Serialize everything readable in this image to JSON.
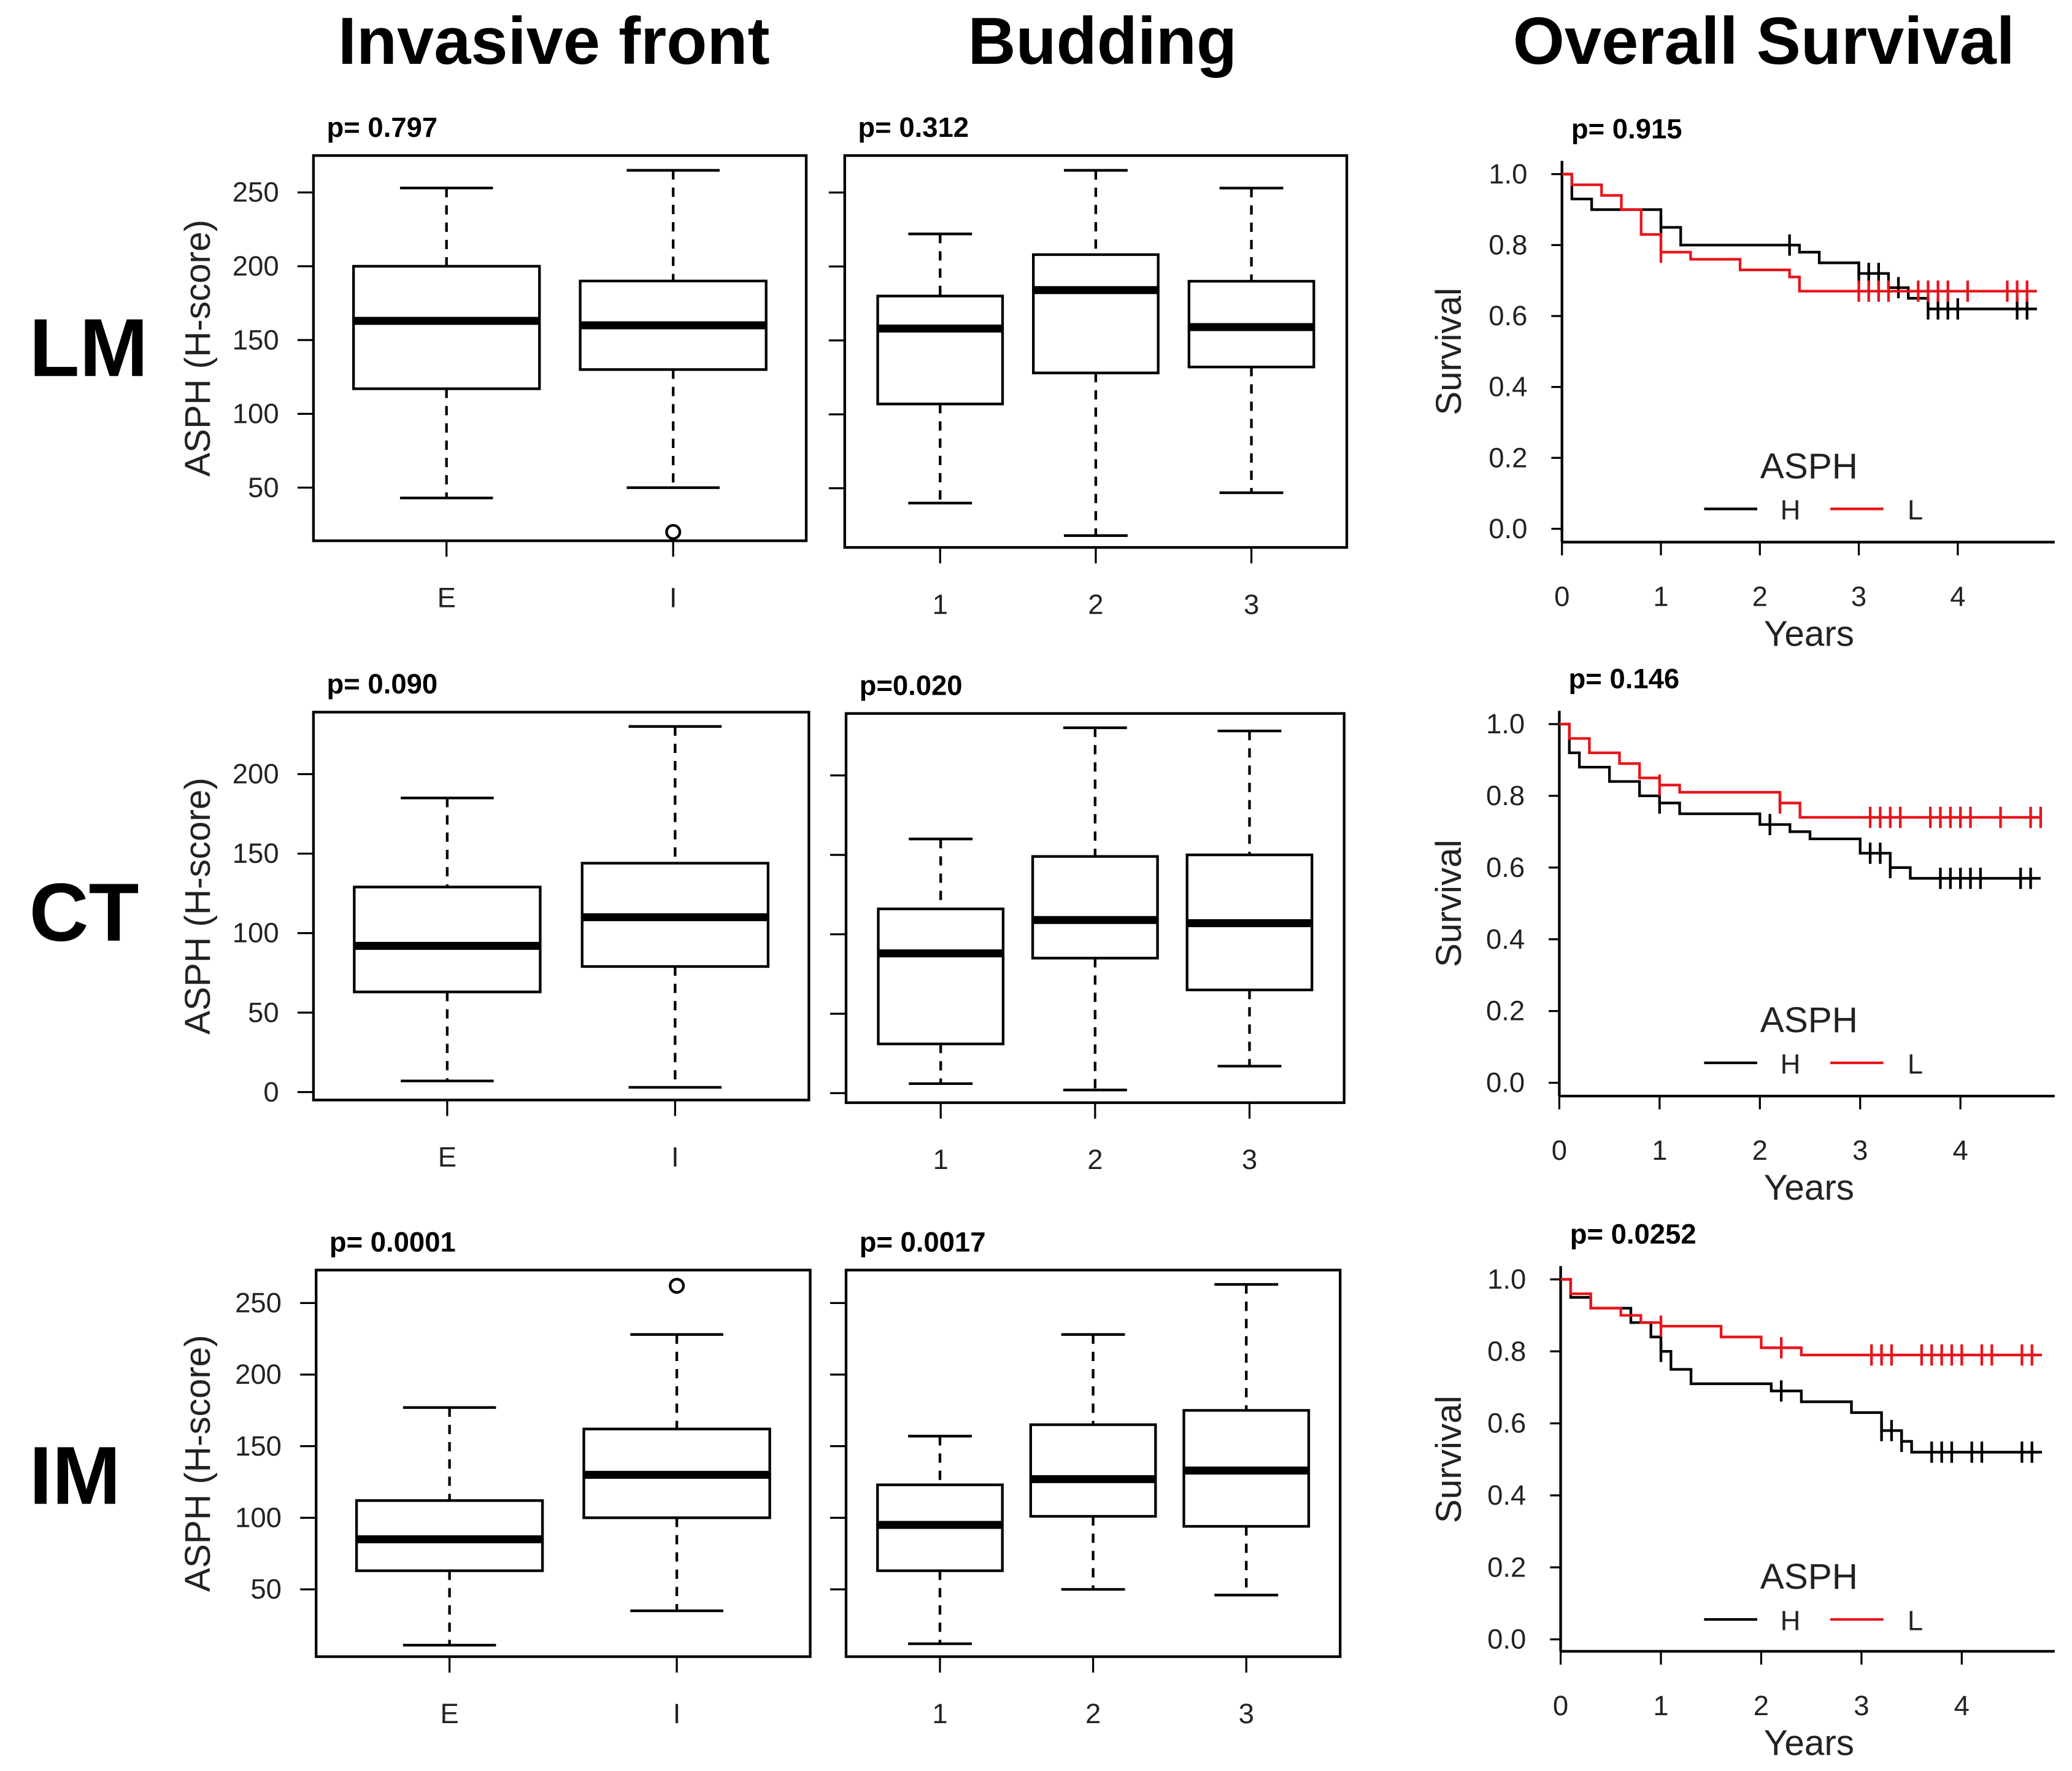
{
  "columns": [
    "Invasive front",
    "Budding",
    "Overall Survival"
  ],
  "rows": [
    "LM",
    "CT",
    "IM"
  ],
  "colors": {
    "H": "#000000",
    "L": "#e8141b"
  },
  "chart_data": [
    {
      "type": "box",
      "row": "LM",
      "panel": "Invasive front",
      "p": "p= 0.797",
      "ylabel": "ASPH (H-score)",
      "ylim": [
        14,
        275
      ],
      "yticks": [
        50,
        100,
        150,
        200,
        250
      ],
      "categories": [
        "E",
        "I"
      ],
      "boxes": [
        {
          "low": 43,
          "q1": 117,
          "median": 163,
          "q3": 200,
          "high": 253,
          "outliers": []
        },
        {
          "low": 50,
          "q1": 130,
          "median": 160,
          "q3": 190,
          "high": 265,
          "outliers": [
            20
          ]
        }
      ]
    },
    {
      "type": "box",
      "row": "LM",
      "panel": "Budding",
      "p": "p= 0.312",
      "ylim": [
        10,
        275
      ],
      "yticks": [
        50,
        100,
        150,
        200,
        250
      ],
      "categories": [
        "1",
        "2",
        "3"
      ],
      "boxes": [
        {
          "low": 40,
          "q1": 107,
          "median": 158,
          "q3": 180,
          "high": 222,
          "outliers": []
        },
        {
          "low": 18,
          "q1": 128,
          "median": 184,
          "q3": 208,
          "high": 265,
          "outliers": []
        },
        {
          "low": 47,
          "q1": 132,
          "median": 159,
          "q3": 190,
          "high": 253,
          "outliers": []
        }
      ]
    },
    {
      "type": "box",
      "row": "CT",
      "panel": "Invasive front",
      "p": "p= 0.090",
      "ylabel": "ASPH (H-score)",
      "ylim": [
        -5,
        239
      ],
      "yticks": [
        0,
        50,
        100,
        150,
        200
      ],
      "categories": [
        "E",
        "I"
      ],
      "boxes": [
        {
          "low": 7,
          "q1": 63,
          "median": 92,
          "q3": 129,
          "high": 185,
          "outliers": []
        },
        {
          "low": 3,
          "q1": 79,
          "median": 110,
          "q3": 144,
          "high": 230,
          "outliers": []
        }
      ]
    },
    {
      "type": "box",
      "row": "CT",
      "panel": "Budding",
      "p": "p=0.020",
      "ylim": [
        -6,
        239
      ],
      "yticks": [
        0,
        50,
        100,
        150,
        200
      ],
      "categories": [
        "1",
        "2",
        "3"
      ],
      "boxes": [
        {
          "low": 6,
          "q1": 31,
          "median": 88,
          "q3": 116,
          "high": 160,
          "outliers": []
        },
        {
          "low": 2,
          "q1": 85,
          "median": 109,
          "q3": 149,
          "high": 230,
          "outliers": []
        },
        {
          "low": 17,
          "q1": 65,
          "median": 107,
          "q3": 150,
          "high": 228,
          "outliers": []
        }
      ]
    },
    {
      "type": "box",
      "row": "IM",
      "panel": "Invasive front",
      "p": "p= 0.0001",
      "ylabel": "ASPH (H-score)",
      "ylim": [
        3,
        273
      ],
      "yticks": [
        50,
        100,
        150,
        200,
        250
      ],
      "categories": [
        "E",
        "I"
      ],
      "boxes": [
        {
          "low": 11,
          "q1": 63,
          "median": 85,
          "q3": 112,
          "high": 177,
          "outliers": []
        },
        {
          "low": 35,
          "q1": 100,
          "median": 130,
          "q3": 162,
          "high": 228,
          "outliers": [
            262
          ]
        }
      ]
    },
    {
      "type": "box",
      "row": "IM",
      "panel": "Budding",
      "p": "p= 0.0017",
      "ylim": [
        3,
        273
      ],
      "yticks": [
        50,
        100,
        150,
        200,
        250
      ],
      "categories": [
        "1",
        "2",
        "3"
      ],
      "boxes": [
        {
          "low": 12,
          "q1": 63,
          "median": 95,
          "q3": 123,
          "high": 157,
          "outliers": []
        },
        {
          "low": 50,
          "q1": 101,
          "median": 127,
          "q3": 165,
          "high": 228,
          "outliers": []
        },
        {
          "low": 46,
          "q1": 94,
          "median": 133,
          "q3": 175,
          "high": 263,
          "outliers": []
        }
      ]
    },
    {
      "type": "line",
      "subtype": "kaplan-meier",
      "row": "LM",
      "p": "p= 0.915",
      "xlabel": "Years",
      "ylabel": "Survival",
      "xticks": [
        0,
        1,
        2,
        3,
        4
      ],
      "yticks": [
        "0.0",
        "0.2",
        "0.4",
        "0.6",
        "0.8",
        "1.0"
      ],
      "legend_title": "ASPH",
      "series": [
        {
          "name": "H",
          "steps": [
            [
              0,
              1
            ],
            [
              0.1,
              0.93
            ],
            [
              0.3,
              0.9
            ],
            [
              0.9,
              0.9
            ],
            [
              1.0,
              0.85
            ],
            [
              1.2,
              0.8
            ],
            [
              2.3,
              0.8
            ],
            [
              2.4,
              0.78
            ],
            [
              2.6,
              0.75
            ],
            [
              2.9,
              0.75
            ],
            [
              3.0,
              0.72
            ],
            [
              3.3,
              0.68
            ],
            [
              3.5,
              0.65
            ],
            [
              3.7,
              0.62
            ],
            [
              4.8,
              0.62
            ]
          ],
          "censors": [
            1.0,
            2.3,
            3.0,
            3.1,
            3.2,
            3.4,
            3.7,
            3.8,
            3.9,
            4.0,
            4.6,
            4.7
          ]
        },
        {
          "name": "L",
          "steps": [
            [
              0,
              1
            ],
            [
              0.1,
              0.97
            ],
            [
              0.4,
              0.94
            ],
            [
              0.6,
              0.9
            ],
            [
              0.8,
              0.83
            ],
            [
              1.0,
              0.78
            ],
            [
              1.3,
              0.76
            ],
            [
              1.8,
              0.73
            ],
            [
              2.3,
              0.71
            ],
            [
              2.4,
              0.67
            ],
            [
              4.8,
              0.67
            ]
          ],
          "censors": [
            1.0,
            3.0,
            3.1,
            3.2,
            3.3,
            3.6,
            3.7,
            3.8,
            3.9,
            4.1,
            4.5,
            4.6,
            4.7
          ]
        }
      ]
    },
    {
      "type": "line",
      "subtype": "kaplan-meier",
      "row": "CT",
      "p": "p= 0.146",
      "xlabel": "Years",
      "ylabel": "Survival",
      "xticks": [
        0,
        1,
        2,
        3,
        4
      ],
      "yticks": [
        "0.0",
        "0.2",
        "0.4",
        "0.6",
        "0.8",
        "1.0"
      ],
      "legend_title": "ASPH",
      "series": [
        {
          "name": "H",
          "steps": [
            [
              0,
              1
            ],
            [
              0.1,
              0.92
            ],
            [
              0.2,
              0.88
            ],
            [
              0.5,
              0.84
            ],
            [
              0.8,
              0.8
            ],
            [
              1.0,
              0.78
            ],
            [
              1.2,
              0.75
            ],
            [
              2.0,
              0.72
            ],
            [
              2.3,
              0.7
            ],
            [
              2.5,
              0.68
            ],
            [
              3.0,
              0.64
            ],
            [
              3.3,
              0.6
            ],
            [
              3.5,
              0.57
            ],
            [
              4.8,
              0.57
            ]
          ],
          "censors": [
            1.0,
            2.1,
            3.1,
            3.2,
            3.3,
            3.8,
            3.9,
            4.0,
            4.1,
            4.2,
            4.6,
            4.7
          ]
        },
        {
          "name": "L",
          "steps": [
            [
              0,
              1
            ],
            [
              0.1,
              0.96
            ],
            [
              0.3,
              0.92
            ],
            [
              0.6,
              0.89
            ],
            [
              0.8,
              0.85
            ],
            [
              1.0,
              0.83
            ],
            [
              1.2,
              0.81
            ],
            [
              2.2,
              0.78
            ],
            [
              2.4,
              0.74
            ],
            [
              4.8,
              0.74
            ]
          ],
          "censors": [
            1.0,
            2.2,
            3.1,
            3.2,
            3.3,
            3.4,
            3.7,
            3.8,
            3.9,
            4.0,
            4.1,
            4.4,
            4.7,
            4.8
          ]
        }
      ]
    },
    {
      "type": "line",
      "subtype": "kaplan-meier",
      "row": "IM",
      "p": "p= 0.0252",
      "xlabel": "Years",
      "ylabel": "Survival",
      "xticks": [
        0,
        1,
        2,
        3,
        4
      ],
      "yticks": [
        "0.0",
        "0.2",
        "0.4",
        "0.6",
        "0.8",
        "1.0"
      ],
      "legend_title": "ASPH",
      "series": [
        {
          "name": "H",
          "steps": [
            [
              0,
              1
            ],
            [
              0.1,
              0.95
            ],
            [
              0.3,
              0.92
            ],
            [
              0.7,
              0.88
            ],
            [
              0.9,
              0.84
            ],
            [
              1.0,
              0.8
            ],
            [
              1.1,
              0.75
            ],
            [
              1.3,
              0.71
            ],
            [
              1.9,
              0.71
            ],
            [
              2.1,
              0.69
            ],
            [
              2.4,
              0.66
            ],
            [
              2.9,
              0.63
            ],
            [
              3.2,
              0.58
            ],
            [
              3.4,
              0.55
            ],
            [
              3.5,
              0.52
            ],
            [
              4.8,
              0.52
            ]
          ],
          "censors": [
            1.0,
            2.2,
            3.2,
            3.3,
            3.4,
            3.7,
            3.8,
            3.9,
            4.1,
            4.2,
            4.6,
            4.7
          ]
        },
        {
          "name": "L",
          "steps": [
            [
              0,
              1
            ],
            [
              0.1,
              0.96
            ],
            [
              0.3,
              0.92
            ],
            [
              0.6,
              0.9
            ],
            [
              0.8,
              0.88
            ],
            [
              1.0,
              0.87
            ],
            [
              1.6,
              0.84
            ],
            [
              2.0,
              0.81
            ],
            [
              2.4,
              0.79
            ],
            [
              4.8,
              0.79
            ]
          ],
          "censors": [
            1.0,
            2.2,
            3.1,
            3.2,
            3.3,
            3.6,
            3.7,
            3.8,
            3.9,
            4.0,
            4.2,
            4.3,
            4.6,
            4.7
          ]
        }
      ]
    }
  ]
}
